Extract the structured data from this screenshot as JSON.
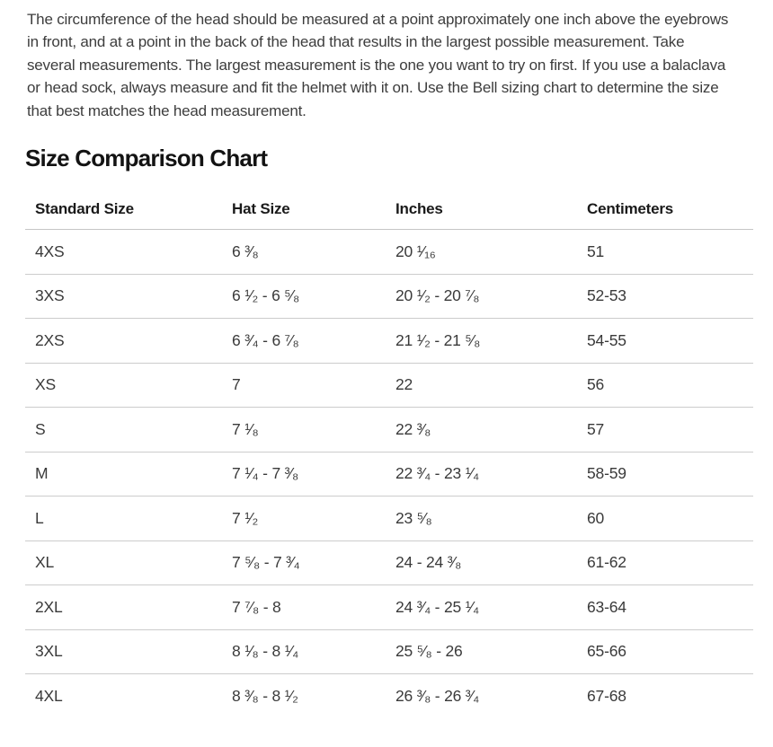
{
  "intro_paragraph": "The circumference of the head should be measured at a point approximately one inch above the eyebrows in front, and at a point in the back of the head that results in the largest possible measurement. Take several measurements. The largest measurement is the one you want to try on first. If you use a balaclava or head sock, always measure and fit the helmet with it on. Use the Bell sizing chart to determine the size that best matches the head measurement.",
  "section_title": "Size Comparison Chart",
  "table": {
    "headers": [
      "Standard Size",
      "Hat Size",
      "Inches",
      "Centimeters"
    ],
    "rows": [
      [
        "4XS",
        "6 ³⁄₈",
        "20 ¹⁄₁₆",
        "51"
      ],
      [
        "3XS",
        "6 ¹⁄₂ - 6 ⁵⁄₈",
        "20 ¹⁄₂ - 20 ⁷⁄₈",
        "52-53"
      ],
      [
        "2XS",
        "6 ³⁄₄ - 6 ⁷⁄₈",
        "21 ¹⁄₂ - 21 ⁵⁄₈",
        "54-55"
      ],
      [
        "XS",
        "7",
        "22",
        "56"
      ],
      [
        "S",
        "7 ¹⁄₈",
        "22 ³⁄₈",
        "57"
      ],
      [
        "M",
        "7 ¹⁄₄ - 7 ³⁄₈",
        "22 ³⁄₄ - 23 ¹⁄₄",
        "58-59"
      ],
      [
        "L",
        "7 ¹⁄₂",
        "23 ⁵⁄₈",
        "60"
      ],
      [
        "XL",
        "7 ⁵⁄₈ - 7 ³⁄₄",
        "24 - 24 ³⁄₈",
        "61-62"
      ],
      [
        "2XL",
        "7 ⁷⁄₈ - 8",
        "24 ³⁄₄ - 25 ¹⁄₄",
        "63-64"
      ],
      [
        "3XL",
        "8 ¹⁄₈ - 8 ¹⁄₄",
        "25 ⁵⁄₈ - 26",
        "65-66"
      ],
      [
        "4XL",
        "8 ³⁄₈ - 8 ¹⁄₂",
        "26 ³⁄₈ - 26 ³⁄₄",
        "67-68"
      ]
    ]
  },
  "colors": {
    "page_background": "#ffffff",
    "body_text": "#3d3d3d",
    "heading_text": "#131313",
    "table_header_text": "#1a1a1a",
    "table_cell_text": "#3a3a3a",
    "divider": "#cccccc"
  }
}
